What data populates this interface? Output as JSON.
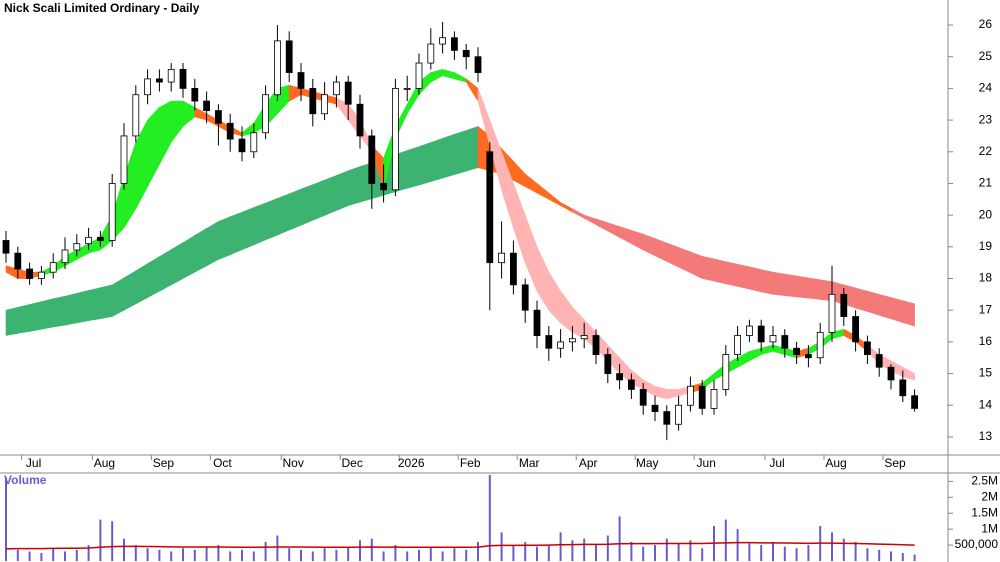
{
  "chart_data": {
    "type": "candlestick",
    "title": "Nick Scali Limited Ordinary - Daily",
    "categories": [
      null,
      null,
      "Jul",
      null,
      null,
      null,
      null,
      null,
      "Aug",
      null,
      null,
      null,
      null,
      "Sep",
      null,
      null,
      null,
      null,
      "Oct",
      null,
      null,
      null,
      null,
      null,
      "Nov",
      null,
      null,
      null,
      null,
      "Dec",
      null,
      null,
      null,
      null,
      "2026",
      null,
      null,
      null,
      null,
      "Feb",
      null,
      null,
      null,
      null,
      "Mar",
      null,
      null,
      null,
      null,
      "Apr",
      null,
      null,
      null,
      null,
      "May",
      null,
      null,
      null,
      null,
      "Jun",
      null,
      null,
      null,
      null,
      null,
      "Jul",
      null,
      null,
      null,
      null,
      "Aug",
      null,
      null,
      null,
      null,
      "Sep",
      null,
      null
    ],
    "open": [
      19.2,
      18.8,
      18.3,
      18.0,
      18.2,
      18.5,
      18.9,
      19.1,
      19.3,
      19.2,
      21.0,
      22.5,
      23.8,
      24.3,
      24.2,
      24.6,
      24.0,
      23.6,
      23.3,
      22.9,
      22.4,
      22.0,
      22.6,
      23.8,
      25.5,
      24.5,
      24.0,
      23.2,
      23.8,
      24.2,
      23.5,
      22.5,
      21.0,
      20.8,
      24.0,
      24.0,
      24.8,
      25.4,
      25.6,
      25.2,
      25.0,
      22.0,
      18.5,
      18.8,
      17.8,
      17.0,
      16.2,
      15.8,
      16.0,
      16.1,
      16.2,
      15.6,
      15.0,
      14.8,
      14.5,
      14.0,
      13.8,
      13.4,
      14.0,
      14.6,
      13.9,
      14.5,
      15.6,
      16.2,
      16.5,
      16.0,
      16.2,
      15.8,
      15.6,
      15.5,
      16.3,
      17.5,
      16.8,
      16.0,
      15.6,
      15.2,
      14.8,
      14.3
    ],
    "high": [
      19.5,
      19.0,
      18.5,
      18.4,
      18.8,
      19.3,
      19.4,
      19.6,
      19.5,
      21.3,
      22.9,
      24.1,
      24.6,
      24.6,
      24.8,
      24.8,
      24.3,
      23.9,
      23.5,
      23.2,
      22.8,
      22.9,
      24.1,
      26.0,
      25.8,
      24.8,
      24.3,
      24.2,
      24.4,
      24.4,
      23.8,
      22.7,
      21.6,
      24.3,
      24.4,
      25.1,
      25.9,
      26.1,
      25.8,
      25.4,
      25.3,
      22.3,
      19.8,
      19.2,
      18.0,
      17.3,
      16.5,
      16.4,
      16.5,
      16.6,
      16.4,
      15.8,
      15.3,
      15.0,
      14.7,
      14.3,
      14.0,
      14.3,
      14.9,
      14.8,
      14.8,
      15.9,
      16.5,
      16.7,
      16.7,
      16.5,
      16.4,
      16.0,
      15.9,
      16.6,
      18.4,
      17.7,
      17.0,
      16.2,
      15.8,
      15.3,
      15.1,
      14.5
    ],
    "low": [
      18.5,
      18.0,
      17.8,
      17.8,
      18.0,
      18.3,
      18.7,
      18.9,
      19.0,
      19.0,
      20.8,
      22.3,
      23.5,
      23.9,
      23.9,
      23.7,
      23.3,
      22.9,
      22.2,
      22.0,
      21.7,
      21.8,
      22.4,
      23.6,
      24.2,
      23.6,
      22.8,
      23.0,
      23.4,
      23.0,
      22.1,
      20.2,
      20.4,
      20.6,
      23.6,
      23.8,
      24.6,
      25.1,
      24.9,
      24.6,
      24.2,
      17.0,
      18.0,
      17.5,
      16.6,
      15.8,
      15.4,
      15.5,
      15.7,
      15.8,
      15.3,
      14.7,
      14.5,
      14.2,
      13.7,
      13.5,
      12.9,
      13.2,
      13.8,
      13.7,
      13.7,
      14.3,
      15.4,
      16.0,
      15.7,
      15.8,
      15.5,
      15.3,
      15.2,
      15.3,
      16.0,
      16.5,
      15.7,
      15.3,
      14.9,
      14.5,
      14.1,
      13.8
    ],
    "close": [
      18.8,
      18.3,
      18.0,
      18.2,
      18.5,
      18.9,
      19.1,
      19.3,
      19.2,
      21.0,
      22.5,
      23.8,
      24.3,
      24.2,
      24.6,
      24.0,
      23.6,
      23.3,
      22.9,
      22.4,
      22.0,
      22.6,
      23.8,
      25.5,
      24.5,
      24.0,
      23.2,
      23.8,
      24.2,
      23.5,
      22.5,
      21.0,
      20.8,
      24.0,
      24.0,
      24.8,
      25.4,
      25.6,
      25.2,
      25.0,
      24.5,
      18.5,
      18.8,
      17.8,
      17.0,
      16.2,
      15.8,
      16.0,
      16.1,
      16.2,
      15.6,
      15.0,
      14.8,
      14.5,
      14.0,
      13.8,
      13.4,
      14.0,
      14.6,
      13.9,
      14.5,
      15.6,
      16.2,
      16.5,
      16.0,
      16.2,
      15.8,
      15.6,
      15.5,
      16.3,
      17.5,
      16.8,
      16.0,
      15.6,
      15.2,
      14.8,
      14.3,
      13.9
    ],
    "up_color": "#ffffff",
    "down_color": "#000000",
    "bands": [
      {
        "upper": [
          17.0,
          17.09,
          17.18,
          17.27,
          17.36,
          17.44,
          17.53,
          17.62,
          17.71,
          17.8,
          18.02,
          18.24,
          18.47,
          18.69,
          18.91,
          19.13,
          19.36,
          19.58,
          19.8,
          19.95,
          20.09,
          20.24,
          20.38,
          20.53,
          20.67,
          20.82,
          20.96,
          21.11,
          21.25,
          21.4,
          21.53,
          21.65,
          21.78,
          21.91,
          22.04,
          22.16,
          22.29,
          22.42,
          22.55,
          22.67,
          22.8,
          22.5,
          22.1,
          21.7,
          21.3,
          21.0,
          20.7,
          20.4,
          20.2,
          20.0,
          19.88,
          19.76,
          19.64,
          19.52,
          19.4,
          19.26,
          19.12,
          18.98,
          18.84,
          18.7,
          18.62,
          18.53,
          18.45,
          18.37,
          18.28,
          18.2,
          18.14,
          18.08,
          18.02,
          17.96,
          17.9,
          17.8,
          17.7,
          17.6,
          17.5,
          17.4,
          17.3,
          17.2
        ],
        "lower": [
          16.2,
          16.27,
          16.33,
          16.4,
          16.47,
          16.53,
          16.6,
          16.67,
          16.73,
          16.8,
          17.0,
          17.2,
          17.4,
          17.6,
          17.8,
          18.0,
          18.2,
          18.4,
          18.6,
          18.75,
          18.91,
          19.06,
          19.22,
          19.37,
          19.53,
          19.68,
          19.84,
          19.99,
          20.15,
          20.3,
          20.41,
          20.52,
          20.63,
          20.74,
          20.85,
          20.95,
          21.06,
          21.17,
          21.28,
          21.39,
          21.5,
          21.4,
          21.3,
          21.1,
          20.9,
          20.7,
          20.5,
          20.3,
          20.1,
          19.9,
          19.7,
          19.5,
          19.3,
          19.1,
          18.9,
          18.72,
          18.54,
          18.36,
          18.18,
          18.0,
          17.92,
          17.83,
          17.75,
          17.67,
          17.58,
          17.5,
          17.46,
          17.42,
          17.38,
          17.34,
          17.3,
          17.19,
          17.07,
          16.96,
          16.84,
          16.73,
          16.61,
          16.5
        ],
        "colors": [
          "#3cb371",
          "#3cb371",
          "#3cb371",
          "#3cb371",
          "#3cb371",
          "#3cb371",
          "#3cb371",
          "#3cb371",
          "#3cb371",
          "#3cb371",
          "#3cb371",
          "#3cb371",
          "#3cb371",
          "#3cb371",
          "#3cb371",
          "#3cb371",
          "#3cb371",
          "#3cb371",
          "#3cb371",
          "#3cb371",
          "#3cb371",
          "#3cb371",
          "#3cb371",
          "#3cb371",
          "#3cb371",
          "#3cb371",
          "#3cb371",
          "#3cb371",
          "#3cb371",
          "#3cb371",
          "#3cb371",
          "#3cb371",
          "#3cb371",
          "#3cb371",
          "#3cb371",
          "#3cb371",
          "#3cb371",
          "#3cb371",
          "#3cb371",
          "#3cb371",
          "#3cb371",
          "#ff6a21",
          "#ff6a21",
          "#ff6a21",
          "#ff6a21",
          "#ff6a21",
          "#ff6a21",
          "#ff6a21",
          "#ff6a21",
          "#f47a7a",
          "#f47a7a",
          "#f47a7a",
          "#f47a7a",
          "#f47a7a",
          "#f47a7a",
          "#f47a7a",
          "#f47a7a",
          "#f47a7a",
          "#f47a7a",
          "#f47a7a",
          "#f47a7a",
          "#f47a7a",
          "#f47a7a",
          "#f47a7a",
          "#f47a7a",
          "#f47a7a",
          "#f47a7a",
          "#f47a7a",
          "#f47a7a",
          "#f47a7a",
          "#f47a7a",
          "#f47a7a",
          "#f47a7a",
          "#f47a7a",
          "#f47a7a",
          "#f47a7a",
          "#f47a7a",
          "#f47a7a"
        ]
      },
      {
        "upper": [
          18.4,
          18.3,
          18.2,
          18.2,
          18.4,
          18.7,
          18.9,
          19.1,
          19.3,
          20.0,
          21.2,
          22.3,
          23.0,
          23.4,
          23.6,
          23.6,
          23.4,
          23.2,
          23.0,
          22.8,
          22.6,
          22.9,
          23.5,
          24.0,
          24.1,
          24.0,
          23.9,
          23.8,
          23.7,
          23.5,
          23.0,
          22.2,
          21.8,
          22.8,
          23.5,
          24.2,
          24.5,
          24.6,
          24.5,
          24.3,
          24.0,
          23.0,
          22.0,
          21.0,
          20.0,
          19.0,
          18.2,
          17.6,
          17.1,
          16.7,
          16.3,
          15.9,
          15.5,
          15.1,
          14.8,
          14.6,
          14.5,
          14.5,
          14.6,
          14.7,
          15.0,
          15.3,
          15.5,
          15.7,
          15.8,
          15.9,
          15.8,
          15.7,
          15.8,
          16.0,
          16.3,
          16.4,
          16.2,
          15.9,
          15.6,
          15.4,
          15.2,
          15.0
        ],
        "lower": [
          18.2,
          18.0,
          18.0,
          18.1,
          18.2,
          18.4,
          18.6,
          18.8,
          18.9,
          19.2,
          19.6,
          20.2,
          20.9,
          21.6,
          22.3,
          22.8,
          23.1,
          23.0,
          22.8,
          22.6,
          22.5,
          22.6,
          22.8,
          23.2,
          23.6,
          23.8,
          23.7,
          23.6,
          23.5,
          23.0,
          22.5,
          22.0,
          20.8,
          22.4,
          23.2,
          23.8,
          24.2,
          24.4,
          24.3,
          24.2,
          23.6,
          22.2,
          20.8,
          19.6,
          18.5,
          17.6,
          17.0,
          16.6,
          16.3,
          16.1,
          15.8,
          15.4,
          15.0,
          14.7,
          14.5,
          14.3,
          14.2,
          14.3,
          14.4,
          14.5,
          14.8,
          15.0,
          15.2,
          15.4,
          15.6,
          15.7,
          15.6,
          15.5,
          15.6,
          15.8,
          16.1,
          16.2,
          16.0,
          15.7,
          15.3,
          15.1,
          14.9,
          14.8
        ],
        "colors": [
          "#ff6a21",
          "#ff6a21",
          "#ff6a21",
          "#ff6a21",
          "#22ee22",
          "#22ee22",
          "#22ee22",
          "#22ee22",
          "#22ee22",
          "#22ee22",
          "#22ee22",
          "#22ee22",
          "#22ee22",
          "#22ee22",
          "#22ee22",
          "#22ee22",
          "#22ee22",
          "#ff6a21",
          "#ff6a21",
          "#ff6a21",
          "#ff6a21",
          "#22ee22",
          "#22ee22",
          "#22ee22",
          "#22ee22",
          "#ff6a21",
          "#ff6a21",
          "#ff6a21",
          "#ff6a21",
          "#ffb3b3",
          "#ffb3b3",
          "#ffb3b3",
          "#ff6a21",
          "#22ee22",
          "#22ee22",
          "#22ee22",
          "#22ee22",
          "#22ee22",
          "#22ee22",
          "#22ee22",
          "#ff6a21",
          "#ffb3b3",
          "#ffb3b3",
          "#ffb3b3",
          "#ffb3b3",
          "#ffb3b3",
          "#ffb3b3",
          "#ffb3b3",
          "#ffb3b3",
          "#ffb3b3",
          "#ffb3b3",
          "#ffb3b3",
          "#ffb3b3",
          "#ffb3b3",
          "#ffb3b3",
          "#ffb3b3",
          "#ffb3b3",
          "#ffb3b3",
          "#ffb3b3",
          "#ff6a21",
          "#22ee22",
          "#22ee22",
          "#22ee22",
          "#22ee22",
          "#22ee22",
          "#22ee22",
          "#22ee22",
          "#22ee22",
          "#ff6a21",
          "#22ee22",
          "#22ee22",
          "#22ee22",
          "#ff6a21",
          "#ff6a21",
          "#ffb3b3",
          "#ffb3b3",
          "#ffb3b3",
          "#ffb3b3"
        ]
      }
    ],
    "ylim": [
      12.43,
      26.79
    ],
    "yticks": [
      13,
      14,
      15,
      16,
      17,
      18,
      19,
      20,
      21,
      22,
      23,
      24,
      25,
      26
    ],
    "volume": {
      "label": "Volume",
      "color": "#6a5acd",
      "average_color": "#cc0000",
      "values": [
        2600000,
        350000,
        300000,
        250000,
        400000,
        300000,
        350000,
        500000,
        1300000,
        1250000,
        700000,
        500000,
        400000,
        350000,
        300000,
        400000,
        350000,
        450000,
        500000,
        300000,
        350000,
        300000,
        600000,
        800000,
        400000,
        350000,
        300000,
        400000,
        350000,
        450000,
        650000,
        700000,
        300000,
        500000,
        300000,
        350000,
        450000,
        300000,
        400000,
        350000,
        600000,
        2700000,
        900000,
        500000,
        600000,
        450000,
        500000,
        900000,
        650000,
        700000,
        500000,
        800000,
        1400000,
        600000,
        450000,
        500000,
        700000,
        550000,
        650000,
        400000,
        1100000,
        1300000,
        1000000,
        550000,
        500000,
        600000,
        450000,
        400000,
        500000,
        1100000,
        900000,
        700000,
        600000,
        400000,
        350000,
        300000,
        250000,
        200000
      ],
      "average": [
        380000,
        390000,
        390000,
        390000,
        395000,
        400000,
        400000,
        410000,
        430000,
        450000,
        460000,
        460000,
        455000,
        450000,
        445000,
        440000,
        440000,
        440000,
        440000,
        435000,
        430000,
        430000,
        435000,
        440000,
        440000,
        440000,
        435000,
        430000,
        430000,
        430000,
        435000,
        440000,
        435000,
        435000,
        430000,
        430000,
        430000,
        430000,
        430000,
        430000,
        435000,
        480000,
        490000,
        490000,
        495000,
        495000,
        500000,
        510000,
        515000,
        520000,
        520000,
        525000,
        540000,
        545000,
        545000,
        545000,
        550000,
        550000,
        555000,
        550000,
        560000,
        570000,
        575000,
        575000,
        570000,
        570000,
        565000,
        560000,
        555000,
        560000,
        560000,
        555000,
        550000,
        540000,
        530000,
        520000,
        510000,
        500000
      ],
      "ylim": [
        0,
        2700000
      ],
      "yticks": [
        {
          "value": 500000,
          "label": "500,000"
        },
        {
          "value": 1000000,
          "label": "1M"
        },
        {
          "value": 1500000,
          "label": "1.5M"
        },
        {
          "value": 2000000,
          "label": "2M"
        },
        {
          "value": 2500000,
          "label": "2.5M"
        }
      ]
    }
  }
}
